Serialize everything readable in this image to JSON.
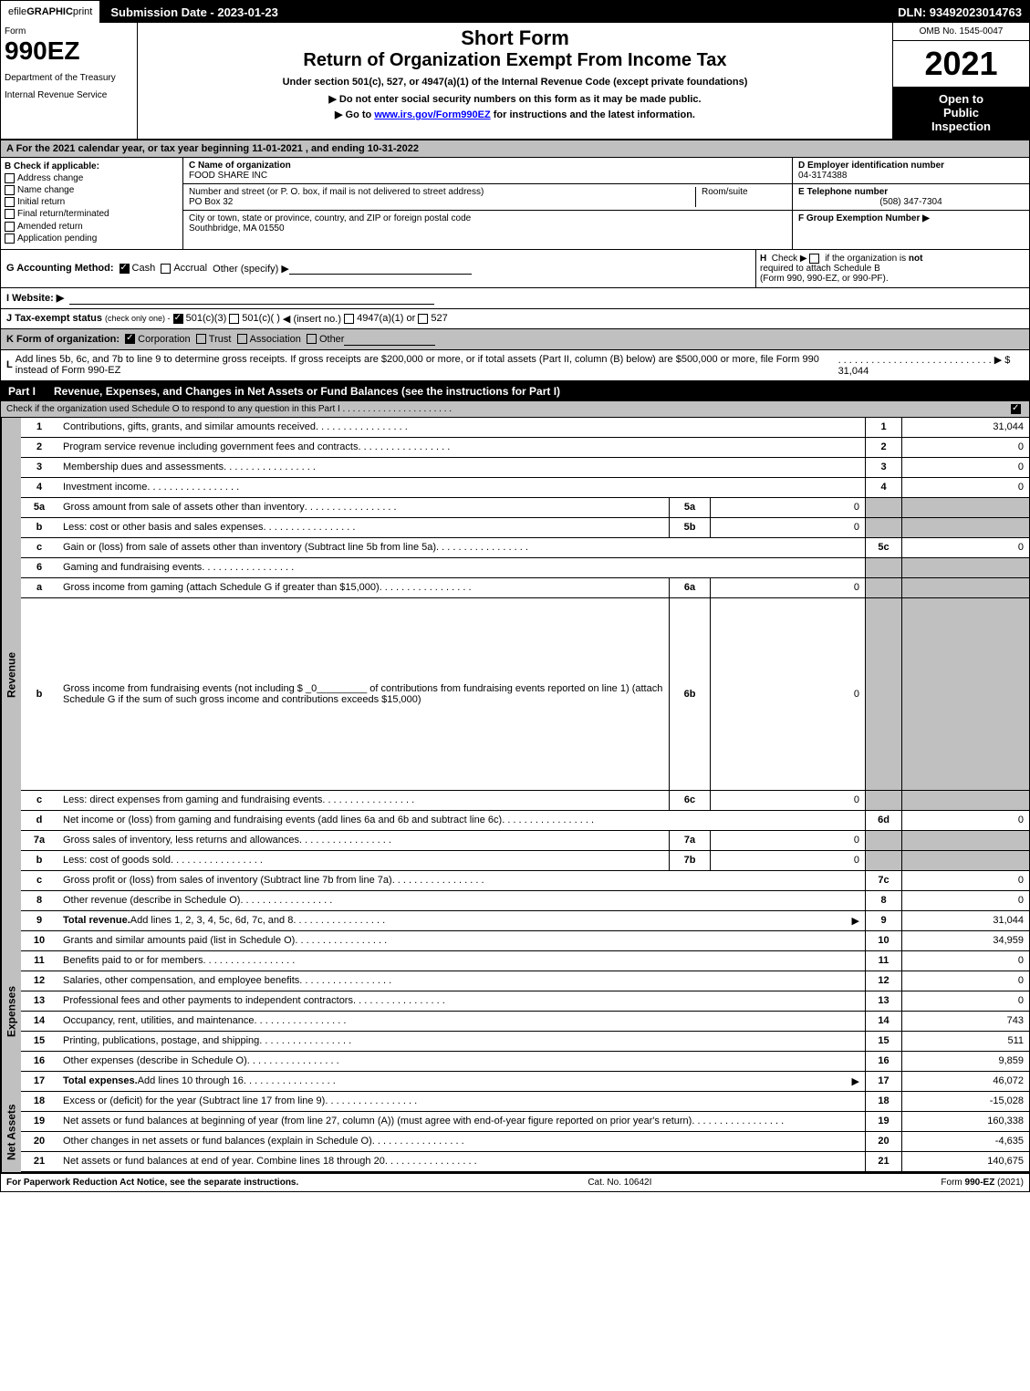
{
  "topbar": {
    "efile": "efile",
    "graphic": "GRAPHIC",
    "print": "print",
    "sub_date": "Submission Date - 2023-01-23",
    "dln": "DLN: 93492023014763"
  },
  "header": {
    "form_label": "Form",
    "form_number": "990EZ",
    "dept1": "Department of the Treasury",
    "dept2": "Internal Revenue Service",
    "title1": "Short Form",
    "title2": "Return of Organization Exempt From Income Tax",
    "subtitle": "Under section 501(c), 527, or 4947(a)(1) of the Internal Revenue Code (except private foundations)",
    "instruction1": "▶ Do not enter social security numbers on this form as it may be made public.",
    "instruction2_pre": "▶ Go to ",
    "instruction2_link": "www.irs.gov/Form990EZ",
    "instruction2_post": " for instructions and the latest information.",
    "omb": "OMB No. 1545-0047",
    "year": "2021",
    "open_public1": "Open to",
    "open_public2": "Public",
    "open_public3": "Inspection"
  },
  "section_a": {
    "text": "A  For the 2021 calendar year, or tax year beginning 11-01-2021  , and ending 10-31-2022"
  },
  "section_b": {
    "label": "B",
    "check_label": "Check if applicable:",
    "items": [
      "Address change",
      "Name change",
      "Initial return",
      "Final return/terminated",
      "Amended return",
      "Application pending"
    ]
  },
  "section_c": {
    "name_label": "C Name of organization",
    "name": "FOOD SHARE INC",
    "addr_label": "Number and street (or P. O. box, if mail is not delivered to street address)",
    "room_label": "Room/suite",
    "addr": "PO Box 32",
    "city_label": "City or town, state or province, country, and ZIP or foreign postal code",
    "city": "Southbridge, MA  01550"
  },
  "section_d": {
    "label": "D Employer identification number",
    "value": "04-3174388"
  },
  "section_e": {
    "label": "E Telephone number",
    "value": "(508) 347-7304"
  },
  "section_f": {
    "label": "F Group Exemption Number  ▶"
  },
  "section_g": {
    "label": "G Accounting Method:",
    "cash": "Cash",
    "accrual": "Accrual",
    "other": "Other (specify) ▶"
  },
  "section_h": {
    "label": "H",
    "text1": "Check ▶",
    "text2": "if the organization is",
    "text3": "not",
    "text4": "required to attach Schedule B",
    "text5": "(Form 990, 990-EZ, or 990-PF)."
  },
  "section_i": {
    "label": "I Website: ▶"
  },
  "section_j": {
    "label": "J Tax-exempt status",
    "sub": "(check only one) -",
    "opt1": "501(c)(3)",
    "opt2": "501(c)(  )",
    "opt2_sub": "◀ (insert no.)",
    "opt3": "4947(a)(1) or",
    "opt4": "527"
  },
  "section_k": {
    "label": "K Form of organization:",
    "opt1": "Corporation",
    "opt2": "Trust",
    "opt3": "Association",
    "opt4": "Other"
  },
  "section_l": {
    "label": "L",
    "text": "Add lines 5b, 6c, and 7b to line 9 to determine gross receipts. If gross receipts are $200,000 or more, or if total assets (Part II, column (B) below) are $500,000 or more, file Form 990 instead of Form 990-EZ",
    "arrow": "▶",
    "value": "$ 31,044"
  },
  "part1": {
    "label": "Part I",
    "title": "Revenue, Expenses, and Changes in Net Assets or Fund Balances (see the instructions for Part I)",
    "check_text": "Check if the organization used Schedule O to respond to any question in this Part I"
  },
  "revenue": {
    "label": "Revenue",
    "lines": [
      {
        "num": "1",
        "desc": "Contributions, gifts, grants, and similar amounts received",
        "col": "1",
        "val": "31,044"
      },
      {
        "num": "2",
        "desc": "Program service revenue including government fees and contracts",
        "col": "2",
        "val": "0"
      },
      {
        "num": "3",
        "desc": "Membership dues and assessments",
        "col": "3",
        "val": "0"
      },
      {
        "num": "4",
        "desc": "Investment income",
        "col": "4",
        "val": "0"
      },
      {
        "num": "5a",
        "desc": "Gross amount from sale of assets other than inventory",
        "subcol": "5a",
        "subval": "0"
      },
      {
        "num": "b",
        "desc": "Less: cost or other basis and sales expenses",
        "subcol": "5b",
        "subval": "0"
      },
      {
        "num": "c",
        "desc": "Gain or (loss) from sale of assets other than inventory (Subtract line 5b from line 5a)",
        "col": "5c",
        "val": "0"
      },
      {
        "num": "6",
        "desc": "Gaming and fundraising events"
      },
      {
        "num": "a",
        "desc": "Gross income from gaming (attach Schedule G if greater than $15,000)",
        "subcol": "6a",
        "subval": "0"
      },
      {
        "num": "b",
        "desc": "Gross income from fundraising events (not including $ _0_________ of contributions from fundraising events reported on line 1) (attach Schedule G if the sum of such gross income and contributions exceeds $15,000)",
        "subcol": "6b",
        "subval": "0"
      },
      {
        "num": "c",
        "desc": "Less: direct expenses from gaming and fundraising events",
        "subcol": "6c",
        "subval": "0"
      },
      {
        "num": "d",
        "desc": "Net income or (loss) from gaming and fundraising events (add lines 6a and 6b and subtract line 6c)",
        "col": "6d",
        "val": "0"
      },
      {
        "num": "7a",
        "desc": "Gross sales of inventory, less returns and allowances",
        "subcol": "7a",
        "subval": "0"
      },
      {
        "num": "b",
        "desc": "Less: cost of goods sold",
        "subcol": "7b",
        "subval": "0"
      },
      {
        "num": "c",
        "desc": "Gross profit or (loss) from sales of inventory (Subtract line 7b from line 7a)",
        "col": "7c",
        "val": "0"
      },
      {
        "num": "8",
        "desc": "Other revenue (describe in Schedule O)",
        "col": "8",
        "val": "0"
      },
      {
        "num": "9",
        "desc": "Total revenue. Add lines 1, 2, 3, 4, 5c, 6d, 7c, and 8",
        "col": "9",
        "val": "31,044",
        "bold": true,
        "arrow": true
      }
    ]
  },
  "expenses": {
    "label": "Expenses",
    "lines": [
      {
        "num": "10",
        "desc": "Grants and similar amounts paid (list in Schedule O)",
        "col": "10",
        "val": "34,959"
      },
      {
        "num": "11",
        "desc": "Benefits paid to or for members",
        "col": "11",
        "val": "0"
      },
      {
        "num": "12",
        "desc": "Salaries, other compensation, and employee benefits",
        "col": "12",
        "val": "0"
      },
      {
        "num": "13",
        "desc": "Professional fees and other payments to independent contractors",
        "col": "13",
        "val": "0"
      },
      {
        "num": "14",
        "desc": "Occupancy, rent, utilities, and maintenance",
        "col": "14",
        "val": "743"
      },
      {
        "num": "15",
        "desc": "Printing, publications, postage, and shipping",
        "col": "15",
        "val": "511"
      },
      {
        "num": "16",
        "desc": "Other expenses (describe in Schedule O)",
        "col": "16",
        "val": "9,859"
      },
      {
        "num": "17",
        "desc": "Total expenses. Add lines 10 through 16",
        "col": "17",
        "val": "46,072",
        "bold": true,
        "arrow": true
      }
    ]
  },
  "netassets": {
    "label": "Net Assets",
    "lines": [
      {
        "num": "18",
        "desc": "Excess or (deficit) for the year (Subtract line 17 from line 9)",
        "col": "18",
        "val": "-15,028"
      },
      {
        "num": "19",
        "desc": "Net assets or fund balances at beginning of year (from line 27, column (A)) (must agree with end-of-year figure reported on prior year's return)",
        "col": "19",
        "val": "160,338"
      },
      {
        "num": "20",
        "desc": "Other changes in net assets or fund balances (explain in Schedule O)",
        "col": "20",
        "val": "-4,635"
      },
      {
        "num": "21",
        "desc": "Net assets or fund balances at end of year. Combine lines 18 through 20",
        "col": "21",
        "val": "140,675"
      }
    ]
  },
  "footer": {
    "left": "For Paperwork Reduction Act Notice, see the separate instructions.",
    "center": "Cat. No. 10642I",
    "right_pre": "Form ",
    "right_bold": "990-EZ",
    "right_post": " (2021)"
  },
  "colors": {
    "black": "#000000",
    "white": "#ffffff",
    "gray": "#c0c0c0",
    "link": "#0000ff"
  }
}
